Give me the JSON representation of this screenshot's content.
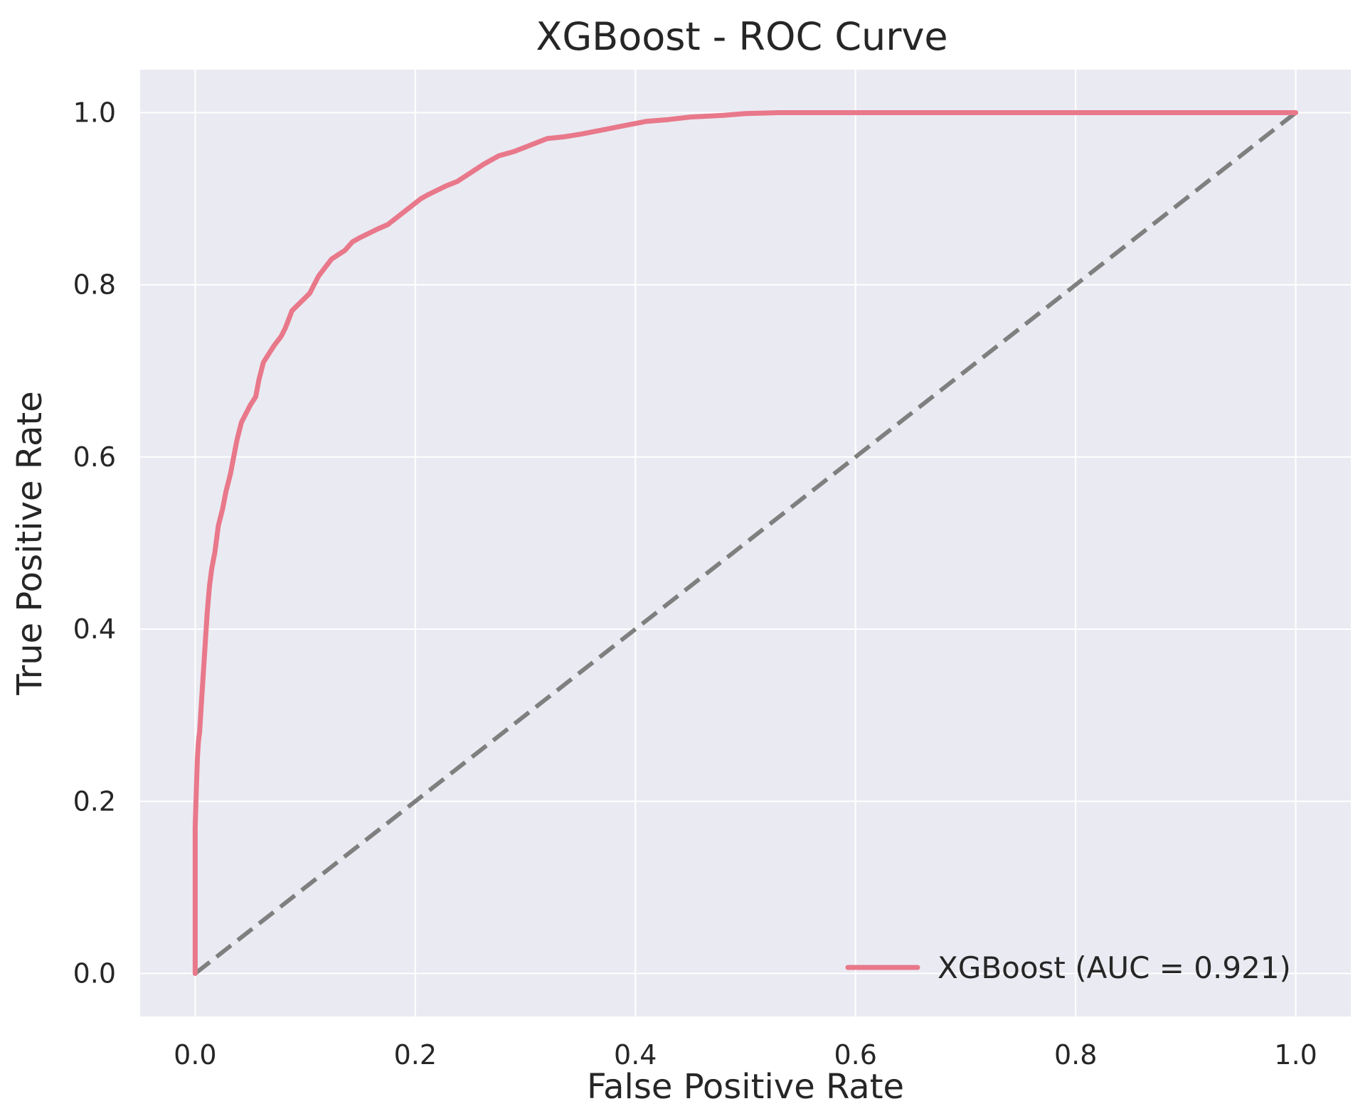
{
  "chart_data": {
    "type": "line",
    "title": "XGBoost - ROC Curve",
    "xlabel": "False Positive Rate",
    "ylabel": "True Positive Rate",
    "xlim": [
      -0.05,
      1.05
    ],
    "ylim": [
      -0.05,
      1.05
    ],
    "xticks": [
      0.0,
      0.2,
      0.4,
      0.6,
      0.8,
      1.0
    ],
    "xtick_labels": [
      "0.0",
      "0.2",
      "0.4",
      "0.6",
      "0.8",
      "1.0"
    ],
    "yticks": [
      0.0,
      0.2,
      0.4,
      0.6,
      0.8,
      1.0
    ],
    "ytick_labels": [
      "0.0",
      "0.2",
      "0.4",
      "0.6",
      "0.8",
      "1.0"
    ],
    "grid": true,
    "legend_position": "lower-right",
    "background_color": "#eaeaf2",
    "series": [
      {
        "name": "XGBoost (AUC = 0.921)",
        "color": "#e8788a",
        "x": [
          0.0,
          0.0,
          0.001,
          0.002,
          0.003,
          0.004,
          0.006,
          0.008,
          0.01,
          0.011,
          0.013,
          0.015,
          0.018,
          0.021,
          0.025,
          0.028,
          0.032,
          0.035,
          0.038,
          0.042,
          0.046,
          0.05,
          0.055,
          0.058,
          0.062,
          0.067,
          0.072,
          0.078,
          0.082,
          0.085,
          0.088,
          0.092,
          0.096,
          0.1,
          0.104,
          0.108,
          0.112,
          0.118,
          0.124,
          0.13,
          0.136,
          0.143,
          0.15,
          0.158,
          0.166,
          0.175,
          0.185,
          0.195,
          0.205,
          0.212,
          0.22,
          0.228,
          0.238,
          0.25,
          0.262,
          0.276,
          0.29,
          0.3,
          0.31,
          0.32,
          0.335,
          0.35,
          0.37,
          0.39,
          0.41,
          0.43,
          0.45,
          0.48,
          0.5,
          0.53,
          0.55,
          0.57,
          0.6,
          0.7,
          0.8,
          0.9,
          1.0
        ],
        "y": [
          0.0,
          0.17,
          0.21,
          0.25,
          0.27,
          0.28,
          0.32,
          0.36,
          0.4,
          0.42,
          0.45,
          0.47,
          0.49,
          0.52,
          0.54,
          0.56,
          0.58,
          0.6,
          0.62,
          0.64,
          0.65,
          0.66,
          0.67,
          0.69,
          0.71,
          0.72,
          0.73,
          0.74,
          0.75,
          0.76,
          0.77,
          0.775,
          0.78,
          0.785,
          0.79,
          0.8,
          0.81,
          0.82,
          0.83,
          0.835,
          0.84,
          0.85,
          0.855,
          0.86,
          0.865,
          0.87,
          0.88,
          0.89,
          0.9,
          0.905,
          0.91,
          0.915,
          0.92,
          0.93,
          0.94,
          0.95,
          0.955,
          0.96,
          0.965,
          0.97,
          0.972,
          0.975,
          0.98,
          0.985,
          0.99,
          0.992,
          0.995,
          0.997,
          0.999,
          1.0,
          1.0,
          1.0,
          1.0,
          1.0,
          1.0,
          1.0,
          1.0
        ]
      },
      {
        "color": "#7f7f7f",
        "dashed": true,
        "x": [
          0.0,
          1.0
        ],
        "y": [
          0.0,
          1.0
        ]
      }
    ]
  }
}
